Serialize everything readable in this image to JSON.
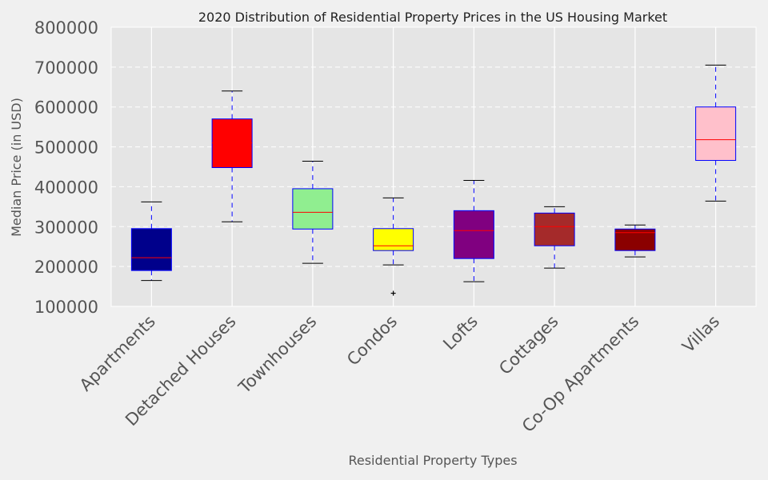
{
  "chart_data": {
    "type": "box",
    "title": "2020 Distribution of Residential Property Prices in the US Housing Market",
    "xlabel": "Residential Property Types",
    "ylabel": "Median Price (in USD)",
    "ylim": [
      100000,
      800000
    ],
    "yticks": [
      "100000",
      "200000",
      "300000",
      "400000",
      "500000",
      "600000",
      "700000",
      "800000"
    ],
    "grid": true,
    "categories": [
      "Apartments",
      "Detached Houses",
      "Townhouses",
      "Condos",
      "Lofts",
      "Cottages",
      "Co-Op Apartments",
      "Villas"
    ],
    "boxes": [
      {
        "category": "Apartments",
        "whisker_low": 165000,
        "q1": 190000,
        "median": 222000,
        "q3": 295000,
        "whisker_high": 362000,
        "outliers": [],
        "color": "#00008b"
      },
      {
        "category": "Detached Houses",
        "whisker_low": 312000,
        "q1": 448000,
        "median": 510000,
        "q3": 570000,
        "whisker_high": 640000,
        "outliers": [],
        "color": "#ff0000"
      },
      {
        "category": "Townhouses",
        "whisker_low": 208000,
        "q1": 294000,
        "median": 336000,
        "q3": 395000,
        "whisker_high": 464000,
        "outliers": [],
        "color": "#90ee90"
      },
      {
        "category": "Condos",
        "whisker_low": 204000,
        "q1": 240000,
        "median": 252000,
        "q3": 295000,
        "whisker_high": 372000,
        "outliers": [
          133000
        ],
        "color": "#ffff00"
      },
      {
        "category": "Lofts",
        "whisker_low": 162000,
        "q1": 220000,
        "median": 290000,
        "q3": 340000,
        "whisker_high": 416000,
        "outliers": [],
        "color": "#800080"
      },
      {
        "category": "Cottages",
        "whisker_low": 196000,
        "q1": 252000,
        "median": 300000,
        "q3": 334000,
        "whisker_high": 350000,
        "outliers": [],
        "color": "#a52a2a"
      },
      {
        "category": "Co-Op Apartments",
        "whisker_low": 224000,
        "q1": 240000,
        "median": 285000,
        "q3": 294000,
        "whisker_high": 304000,
        "outliers": [],
        "color": "#8b0000"
      },
      {
        "category": "Villas",
        "whisker_low": 364000,
        "q1": 466000,
        "median": 518000,
        "q3": 600000,
        "whisker_high": 705000,
        "outliers": [],
        "color": "#ffc0cb"
      }
    ],
    "colors": {
      "plot_background": "#e5e5e5",
      "figure_background": "#f0f0f0",
      "box_edge": "#0000ff",
      "median_line": "#ff0000",
      "whisker_line": "#0000ff",
      "cap_line": "#000000",
      "grid_line": "#ffffff"
    }
  }
}
